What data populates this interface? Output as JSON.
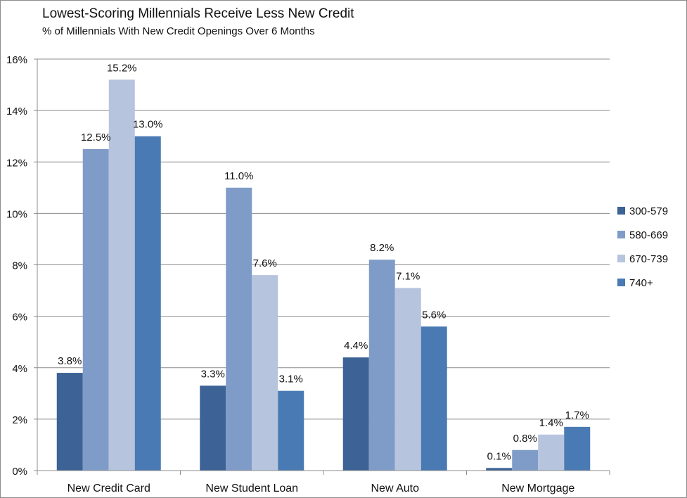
{
  "chart_data": {
    "type": "bar",
    "title": "Lowest-Scoring Millennials Receive Less New Credit",
    "subtitle": "% of Millennials  With New Credit Openings Over 6 Months",
    "categories": [
      "New Credit Card",
      "New Student Loan",
      "New Auto",
      "New Mortgage"
    ],
    "series": [
      {
        "name": "300-579",
        "color": "#3c6296",
        "values": [
          3.8,
          3.3,
          4.4,
          0.1
        ]
      },
      {
        "name": "580-669",
        "color": "#7f9cc8",
        "values": [
          12.5,
          11.0,
          8.2,
          0.8
        ]
      },
      {
        "name": "670-739",
        "color": "#b7c4de",
        "values": [
          15.2,
          7.6,
          7.1,
          1.4
        ]
      },
      {
        "name": "740+",
        "color": "#4a7ab3",
        "values": [
          13.0,
          3.1,
          5.6,
          1.7
        ]
      }
    ],
    "data_labels": [
      [
        "3.8%",
        "3.3%",
        "4.4%",
        "0.1%"
      ],
      [
        "12.5%",
        "11.0%",
        "8.2%",
        "0.8%"
      ],
      [
        "15.2%",
        "7.6%",
        "7.1%",
        "1.4%"
      ],
      [
        "13.0%",
        "3.1%",
        "5.6%",
        "1.7%"
      ]
    ],
    "ylim": [
      0,
      16
    ],
    "yticks": [
      0,
      2,
      4,
      6,
      8,
      10,
      12,
      14,
      16
    ],
    "ytick_labels": [
      "0%",
      "2%",
      "4%",
      "6%",
      "8%",
      "10%",
      "12%",
      "14%",
      "16%"
    ],
    "grid": true,
    "legend": "right"
  }
}
